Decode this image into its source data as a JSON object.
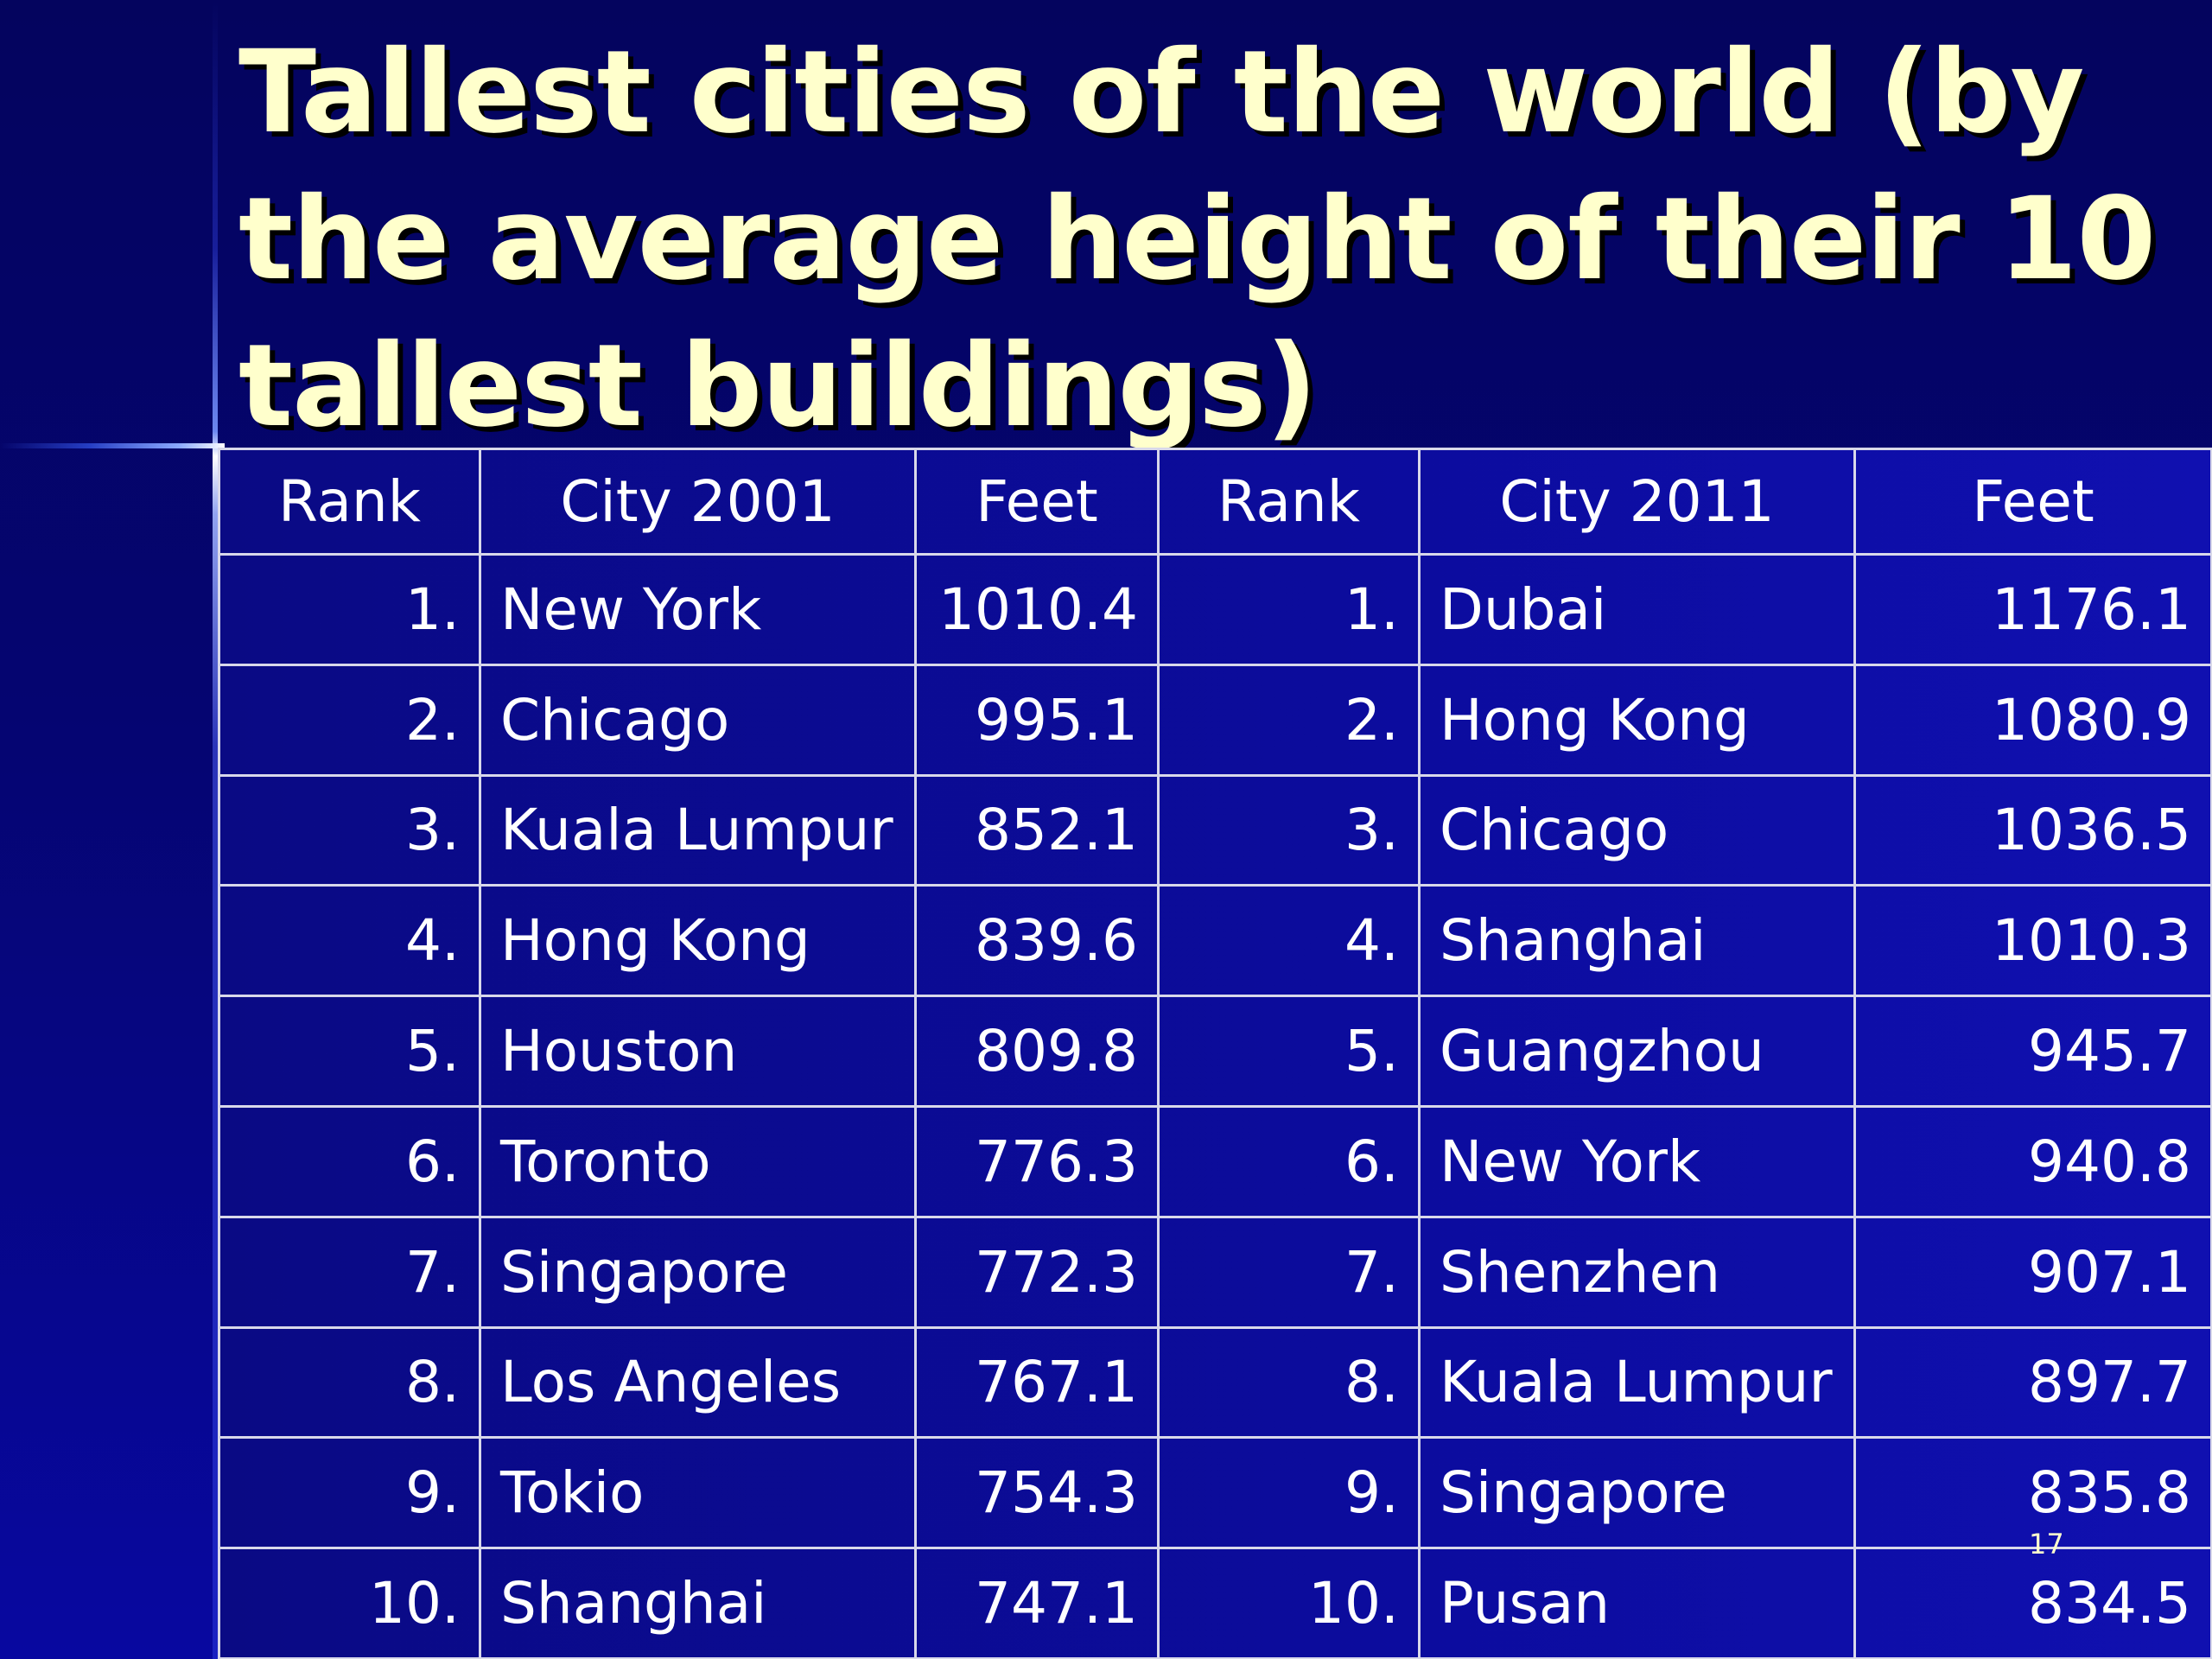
{
  "title": "Tallest cities of the world (by the average height of their 10 tallest buildings)",
  "table": {
    "headers": [
      "Rank",
      "City 2001",
      "Feet",
      "Rank",
      "City 2011",
      "Feet"
    ],
    "rows": [
      [
        "1.",
        "New York",
        "1010.4",
        "1.",
        "Dubai",
        "1176.1"
      ],
      [
        "2.",
        "Chicago",
        "995.1",
        "2.",
        "Hong Kong",
        "1080.9"
      ],
      [
        "3.",
        "Kuala Lumpur",
        "852.1",
        "3.",
        "Chicago",
        "1036.5"
      ],
      [
        "4.",
        "Hong Kong",
        "839.6",
        "4.",
        "Shanghai",
        "1010.3"
      ],
      [
        "5.",
        "Houston",
        "809.8",
        "5.",
        "Guangzhou",
        "945.7"
      ],
      [
        "6.",
        "Toronto",
        "776.3",
        "6.",
        "New York",
        "940.8"
      ],
      [
        "7.",
        "Singapore",
        "772.3",
        "7.",
        "Shenzhen",
        "907.1"
      ],
      [
        "8.",
        "Los Angeles",
        "767.1",
        "8.",
        "Kuala Lumpur",
        "897.7"
      ],
      [
        "9.",
        "Tokio",
        "754.3",
        "9.",
        "Singapore",
        "835.8"
      ],
      [
        "10.",
        "Shanghai",
        "747.1",
        "10.",
        "Pusan",
        "834.5"
      ]
    ]
  },
  "page_number": "17",
  "colors": {
    "title_text": "#ffffcc",
    "background": "#05056a",
    "table_fill": "#0c0c9e",
    "grid_lines": "#d8d8ea",
    "cell_text": "#ffffff"
  }
}
